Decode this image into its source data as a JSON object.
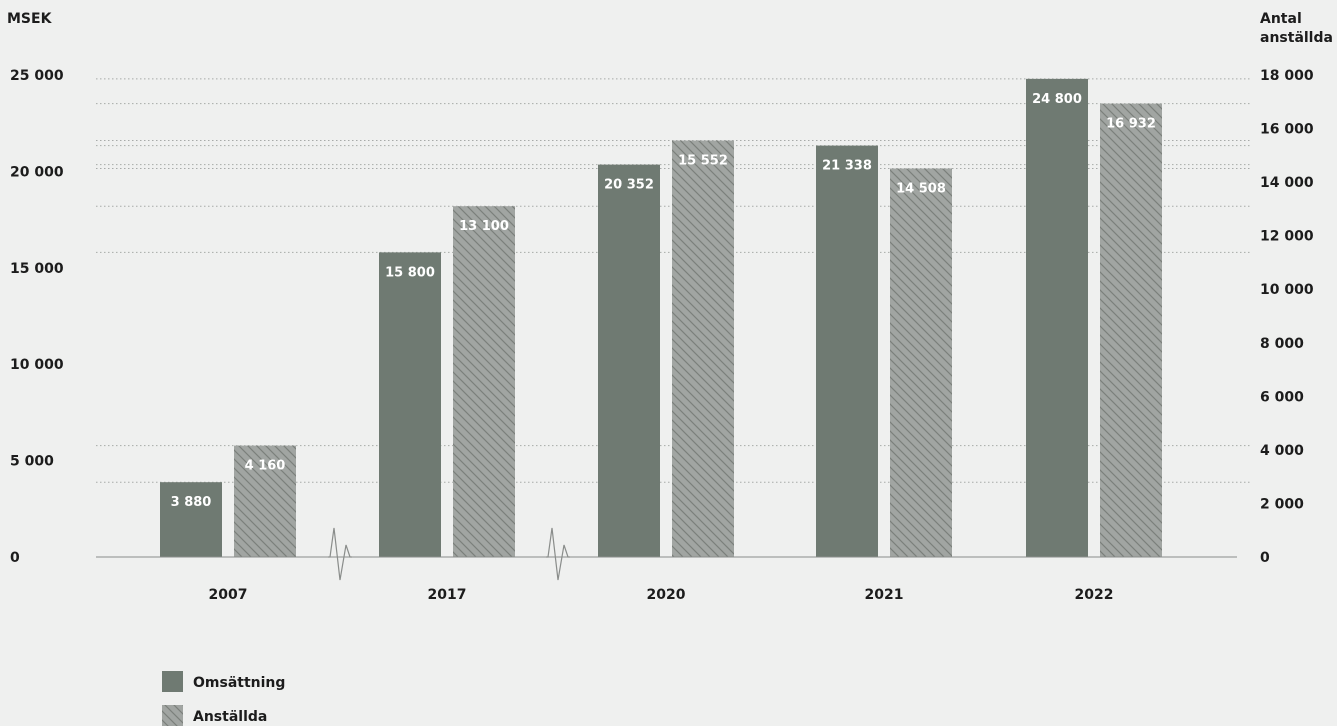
{
  "chart_data": {
    "type": "bar",
    "title": "",
    "left_axis": {
      "label": "MSEK",
      "range": [
        0,
        25000
      ],
      "ticks": [
        "0",
        "5 000",
        "10 000",
        "15 000",
        "20 000",
        "25 000"
      ],
      "tick_values": [
        0,
        5000,
        10000,
        15000,
        20000,
        25000
      ]
    },
    "right_axis": {
      "label_line1": "Antal",
      "label_line2": "anställda",
      "range": [
        0,
        18000
      ],
      "ticks": [
        "0",
        "2 000",
        "4 000",
        "6 000",
        "8 000",
        "10 000",
        "12 000",
        "14 000",
        "16 000",
        "18 000"
      ],
      "tick_values": [
        0,
        2000,
        4000,
        6000,
        8000,
        10000,
        12000,
        14000,
        16000,
        18000
      ]
    },
    "categories": [
      "2007",
      "2017",
      "2020",
      "2021",
      "2022"
    ],
    "axis_breaks_after": [
      "2007",
      "2017"
    ],
    "series": [
      {
        "name": "Omsättning",
        "axis": "left",
        "color": "#6f7a72",
        "pattern": "solid",
        "values": [
          3880,
          15800,
          20352,
          21338,
          24800
        ],
        "labels": [
          "3 880",
          "15 800",
          "20 352",
          "21 338",
          "24 800"
        ]
      },
      {
        "name": "Anställda",
        "axis": "right",
        "color": "#9ea29f",
        "pattern": "hatched",
        "values": [
          4160,
          13100,
          15552,
          14508,
          16932
        ],
        "labels": [
          "4 160",
          "13 100",
          "15 552",
          "14 508",
          "16 932"
        ]
      }
    ],
    "grid": "dotted-at-bar-tops",
    "legend_position": "bottom-left"
  }
}
